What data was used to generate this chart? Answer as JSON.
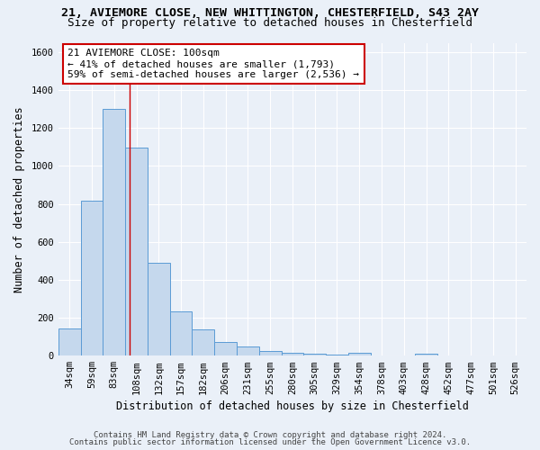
{
  "title_line1": "21, AVIEMORE CLOSE, NEW WHITTINGTON, CHESTERFIELD, S43 2AY",
  "title_line2": "Size of property relative to detached houses in Chesterfield",
  "xlabel": "Distribution of detached houses by size in Chesterfield",
  "ylabel": "Number of detached properties",
  "categories": [
    "34sqm",
    "59sqm",
    "83sqm",
    "108sqm",
    "132sqm",
    "157sqm",
    "182sqm",
    "206sqm",
    "231sqm",
    "255sqm",
    "280sqm",
    "305sqm",
    "329sqm",
    "354sqm",
    "378sqm",
    "403sqm",
    "428sqm",
    "452sqm",
    "477sqm",
    "501sqm",
    "526sqm"
  ],
  "values": [
    143,
    815,
    1300,
    1095,
    488,
    232,
    138,
    73,
    47,
    24,
    17,
    10,
    5,
    13,
    3,
    0,
    10,
    0,
    0,
    0,
    0
  ],
  "bar_color": "#c5d8ed",
  "bar_edge_color": "#5b9bd5",
  "background_color": "#eaf0f8",
  "red_line_x": 2.68,
  "annotation_text": "21 AVIEMORE CLOSE: 100sqm\n← 41% of detached houses are smaller (1,793)\n59% of semi-detached houses are larger (2,536) →",
  "annotation_box_color": "#ffffff",
  "annotation_border_color": "#cc0000",
  "ylim": [
    0,
    1650
  ],
  "yticks": [
    0,
    200,
    400,
    600,
    800,
    1000,
    1200,
    1400,
    1600
  ],
  "footnote1": "Contains HM Land Registry data © Crown copyright and database right 2024.",
  "footnote2": "Contains public sector information licensed under the Open Government Licence v3.0.",
  "title_fontsize": 9.5,
  "subtitle_fontsize": 9,
  "axis_label_fontsize": 8.5,
  "tick_fontsize": 7.5,
  "annotation_fontsize": 8,
  "footnote_fontsize": 6.5
}
